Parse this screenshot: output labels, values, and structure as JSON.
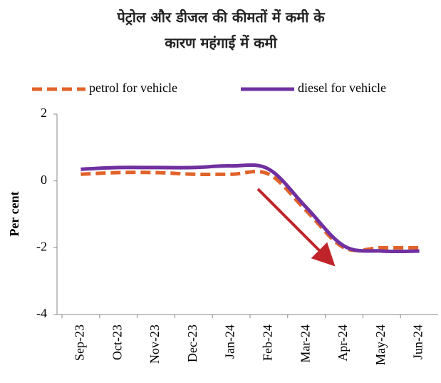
{
  "chart_data": {
    "type": "line",
    "title": "पेट्रोल और डीजल की कीमतों में कमी के कारण महंगाई में कमी",
    "y_label": "Per cent",
    "categories": [
      "Sep-23",
      "Oct-23",
      "Nov-23",
      "Dec-23",
      "Jan-24",
      "Feb-24",
      "Mar-24",
      "Apr-24",
      "May-24",
      "Jun-24"
    ],
    "series": [
      {
        "name": "petrol for vehicle",
        "color": "#e0632a",
        "dashed": true,
        "values": [
          0.2,
          0.25,
          0.25,
          0.2,
          0.2,
          0.2,
          -0.9,
          -2.0,
          -2.0,
          -2.0
        ]
      },
      {
        "name": "diesel for vehicle",
        "color": "#7030a0",
        "dashed": false,
        "values": [
          0.35,
          0.4,
          0.4,
          0.4,
          0.45,
          0.35,
          -0.8,
          -1.95,
          -2.1,
          -2.1
        ]
      }
    ],
    "ylim": [
      -4,
      2
    ],
    "yticks": [
      -4,
      -2,
      0,
      2
    ],
    "grid": false,
    "legend": "top"
  }
}
